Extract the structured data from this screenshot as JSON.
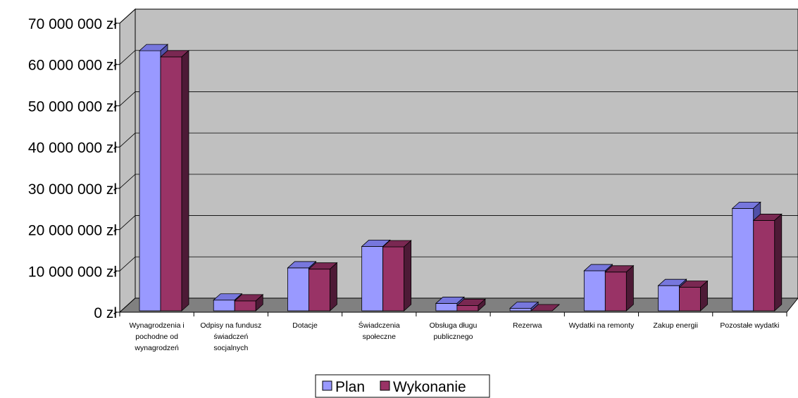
{
  "chart_data": {
    "type": "bar",
    "currency_suffix": " zł",
    "categories": [
      [
        "Wynagrodzenia i",
        "pochodne od",
        "wynagrodzeń"
      ],
      [
        "Odpisy na fundusz",
        "świadczeń",
        "socjalnych"
      ],
      [
        "Dotacje"
      ],
      [
        "Świadczenia",
        "społeczne"
      ],
      [
        "Obsługa długu",
        "publicznego"
      ],
      [
        "Rezerwa"
      ],
      [
        "Wydatki na remonty"
      ],
      [
        "Zakup energii"
      ],
      [
        "Pozostałe wydatki"
      ]
    ],
    "series": [
      {
        "name": "Plan",
        "color": "#9999ff",
        "top_color": "#7777dd",
        "side_color": "#5050a8",
        "values": [
          63000000,
          2600000,
          10400000,
          15600000,
          1800000,
          600000,
          9700000,
          6100000,
          24800000
        ]
      },
      {
        "name": "Wykonanie",
        "color": "#993366",
        "top_color": "#7a2852",
        "side_color": "#4d1a36",
        "values": [
          61500000,
          2400000,
          10100000,
          15500000,
          1300000,
          0,
          9400000,
          5700000,
          21900000
        ]
      }
    ],
    "y_ticks": [
      "0 zł",
      "10 000 000 zł",
      "20 000 000 zł",
      "30 000 000 zł",
      "40 000 000 zł",
      "50 000 000 zł",
      "60 000 000 zł",
      "70 000 000 zł"
    ],
    "ylim": [
      0,
      70000000
    ],
    "grid": true,
    "legend_position": "bottom",
    "plot_color": "#c0c0c0",
    "floor_color": "#808080"
  }
}
